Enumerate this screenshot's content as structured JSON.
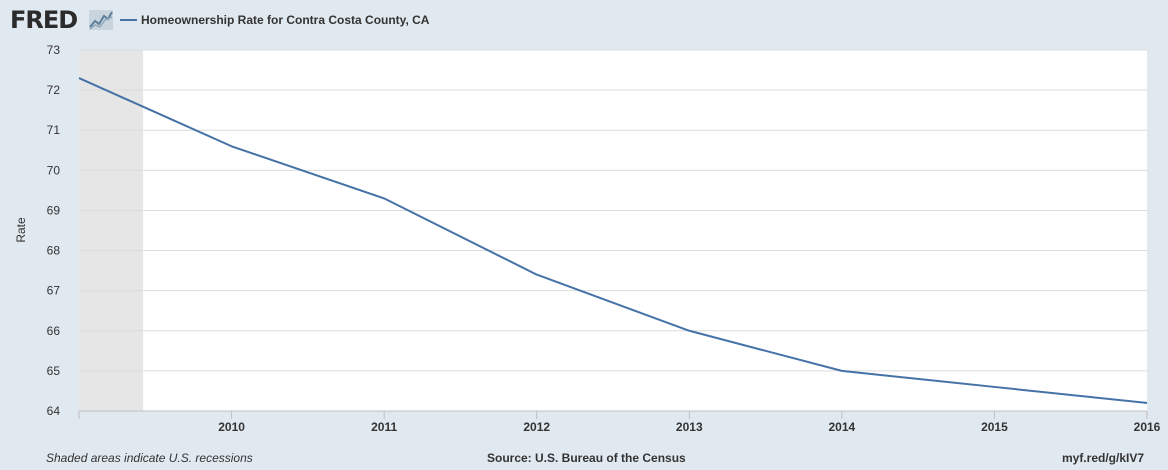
{
  "header": {
    "logo_text": "FRED",
    "logo_icon": "line-chart-icon"
  },
  "chart_data": {
    "type": "line",
    "title": "",
    "xlabel": "",
    "ylabel": "Rate",
    "ylim": [
      64,
      73
    ],
    "yticks": [
      "64",
      "65",
      "66",
      "67",
      "68",
      "69",
      "70",
      "71",
      "72",
      "73"
    ],
    "xticks": [
      "2010",
      "2011",
      "2012",
      "2013",
      "2014",
      "2015",
      "2016"
    ],
    "xlim": [
      2009,
      2016
    ],
    "grid": true,
    "legend_position": "top-left",
    "recessions": [
      {
        "start": 2009.0,
        "end": 2009.42
      }
    ],
    "series": [
      {
        "name": "Homeownership Rate for Contra Costa County, CA",
        "color": "#4572a7",
        "x": [
          2009,
          2010,
          2011,
          2012,
          2013,
          2014,
          2015,
          2016
        ],
        "y": [
          72.3,
          70.6,
          69.3,
          67.4,
          66.0,
          65.0,
          64.6,
          64.2
        ]
      }
    ]
  },
  "footer": {
    "recession_note": "Shaded areas indicate U.S. recessions",
    "source": "Source: U.S. Bureau of the Census",
    "short_url": "myf.red/g/kIV7"
  },
  "colors": {
    "background": "#e1e9f0",
    "plot_background": "#ffffff",
    "recession_shade": "#e6e6e6",
    "gridline": "#dcdcdc",
    "line": "#4572a7"
  }
}
